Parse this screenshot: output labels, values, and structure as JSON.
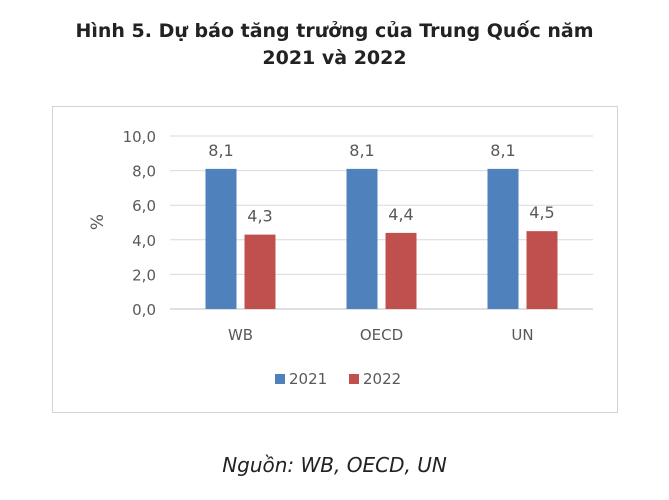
{
  "title_line1": "Hình 5. Dự báo tăng trưởng của Trung Quốc năm",
  "title_line2": "2021 và 2022",
  "source": "Nguồn: WB, OECD, UN",
  "chart_data": {
    "type": "bar",
    "categories": [
      "WB",
      "OECD",
      "UN"
    ],
    "series": [
      {
        "name": "2021",
        "values": [
          8.1,
          8.1,
          8.1
        ],
        "labels": [
          "8,1",
          "8,1",
          "8,1"
        ],
        "color": "#4f81bd"
      },
      {
        "name": "2022",
        "values": [
          4.3,
          4.4,
          4.5
        ],
        "labels": [
          "4,3",
          "4,4",
          "4,5"
        ],
        "color": "#c0504d"
      }
    ],
    "ylabel": "%",
    "ylim": [
      0,
      10
    ],
    "yticks": [
      0,
      2,
      4,
      6,
      8,
      10
    ],
    "ytick_labels": [
      "0,0",
      "2,0",
      "4,0",
      "6,0",
      "8,0",
      "10,0"
    ],
    "grid": true,
    "legend": "bottom"
  }
}
